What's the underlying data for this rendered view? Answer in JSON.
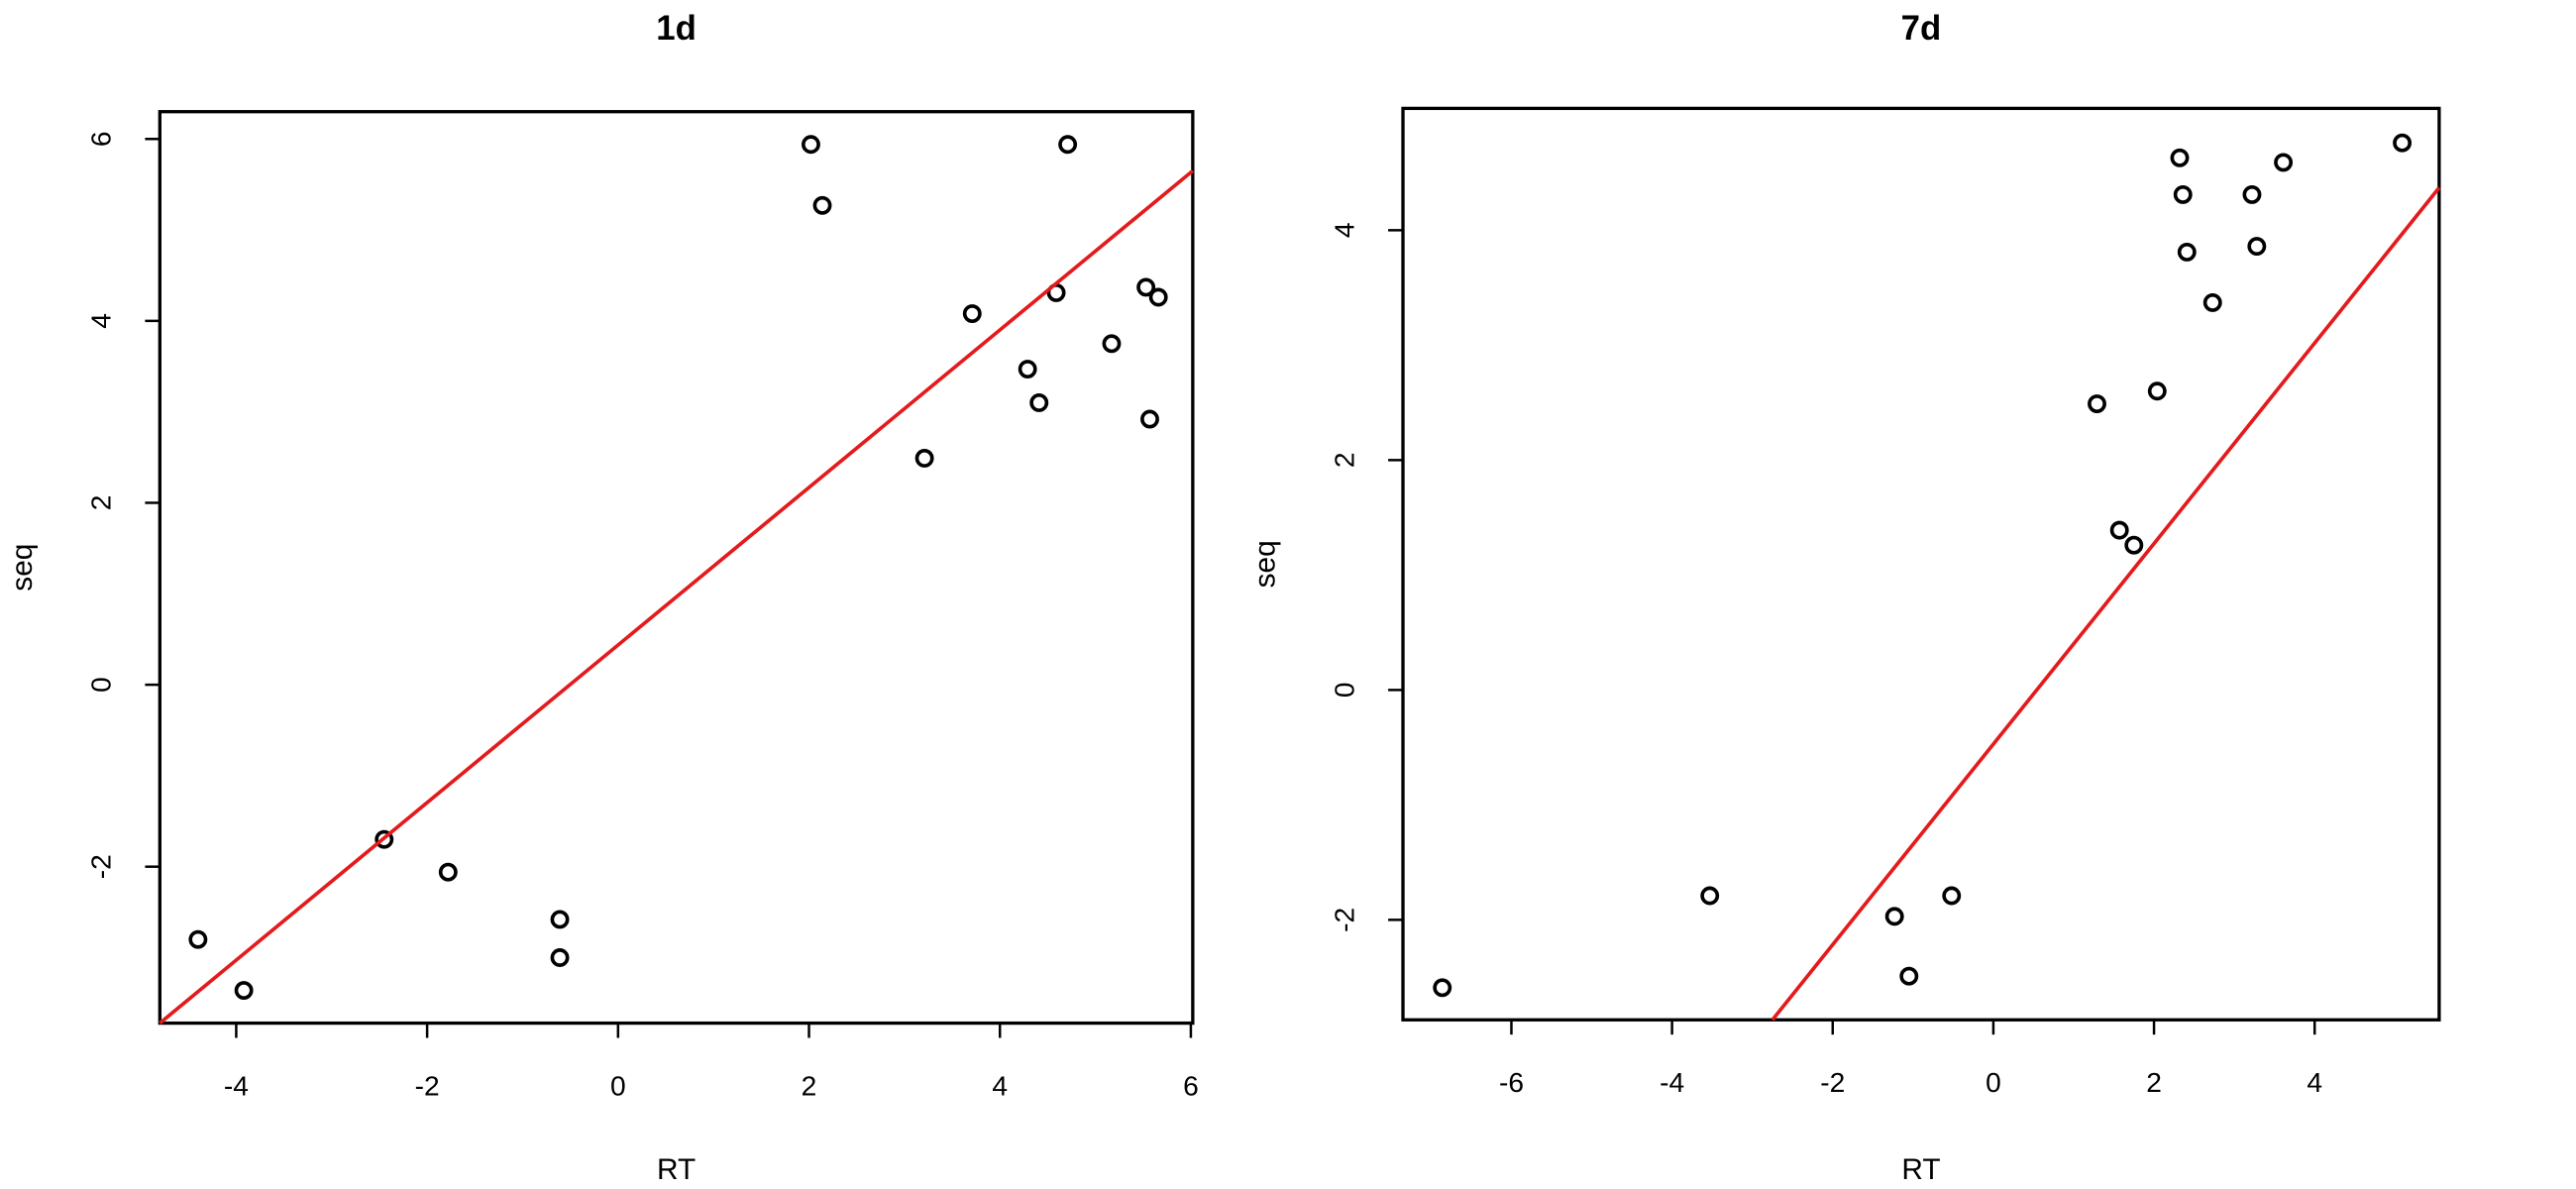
{
  "chart_data": [
    {
      "type": "scatter",
      "title": "1d",
      "x_label": "RT",
      "y_label": "seq",
      "x": [
        -4.4,
        -3.92,
        -2.45,
        -1.78,
        -0.61,
        -0.61,
        2.02,
        2.14,
        3.21,
        3.71,
        4.29,
        4.41,
        4.59,
        4.71,
        5.17,
        5.53,
        5.57,
        5.66
      ],
      "y": [
        -2.8,
        -3.36,
        -1.7,
        -2.06,
        -2.58,
        -3.0,
        5.94,
        5.27,
        2.49,
        4.08,
        3.47,
        3.1,
        4.31,
        5.94,
        3.75,
        4.37,
        2.92,
        4.26
      ],
      "color": "#000000",
      "fit_line": {
        "x": [
          -4.8,
          6.02
        ],
        "y": [
          -3.72,
          5.65
        ],
        "color": "#e41a1c"
      },
      "xlim": [
        -4.8,
        6.02
      ],
      "ylim": [
        -3.72,
        6.3
      ],
      "xticks": [
        -4,
        -2,
        0,
        2,
        4,
        6
      ],
      "yticks": [
        -2,
        0,
        2,
        4,
        6
      ]
    },
    {
      "type": "scatter",
      "title": "7d",
      "x_label": "RT",
      "y_label": "seq",
      "x": [
        -6.86,
        -3.53,
        -1.23,
        -1.05,
        -0.52,
        1.29,
        1.57,
        1.75,
        2.04,
        2.32,
        2.36,
        2.41,
        2.73,
        3.22,
        3.28,
        3.61,
        5.09
      ],
      "y": [
        -2.59,
        -1.79,
        -1.97,
        -2.49,
        -1.79,
        2.49,
        1.39,
        1.26,
        2.6,
        4.63,
        4.31,
        3.81,
        3.37,
        4.31,
        3.86,
        4.59,
        4.76
      ],
      "color": "#000000",
      "fit_line": {
        "x": [
          -2.75,
          5.55
        ],
        "y": [
          -2.87,
          4.37
        ],
        "color": "#e41a1c"
      },
      "xlim": [
        -7.35,
        5.55
      ],
      "ylim": [
        -2.87,
        5.06
      ],
      "xticks": [
        -6,
        -4,
        -2,
        0,
        2,
        4
      ],
      "yticks": [
        -2,
        0,
        2,
        4
      ]
    }
  ]
}
